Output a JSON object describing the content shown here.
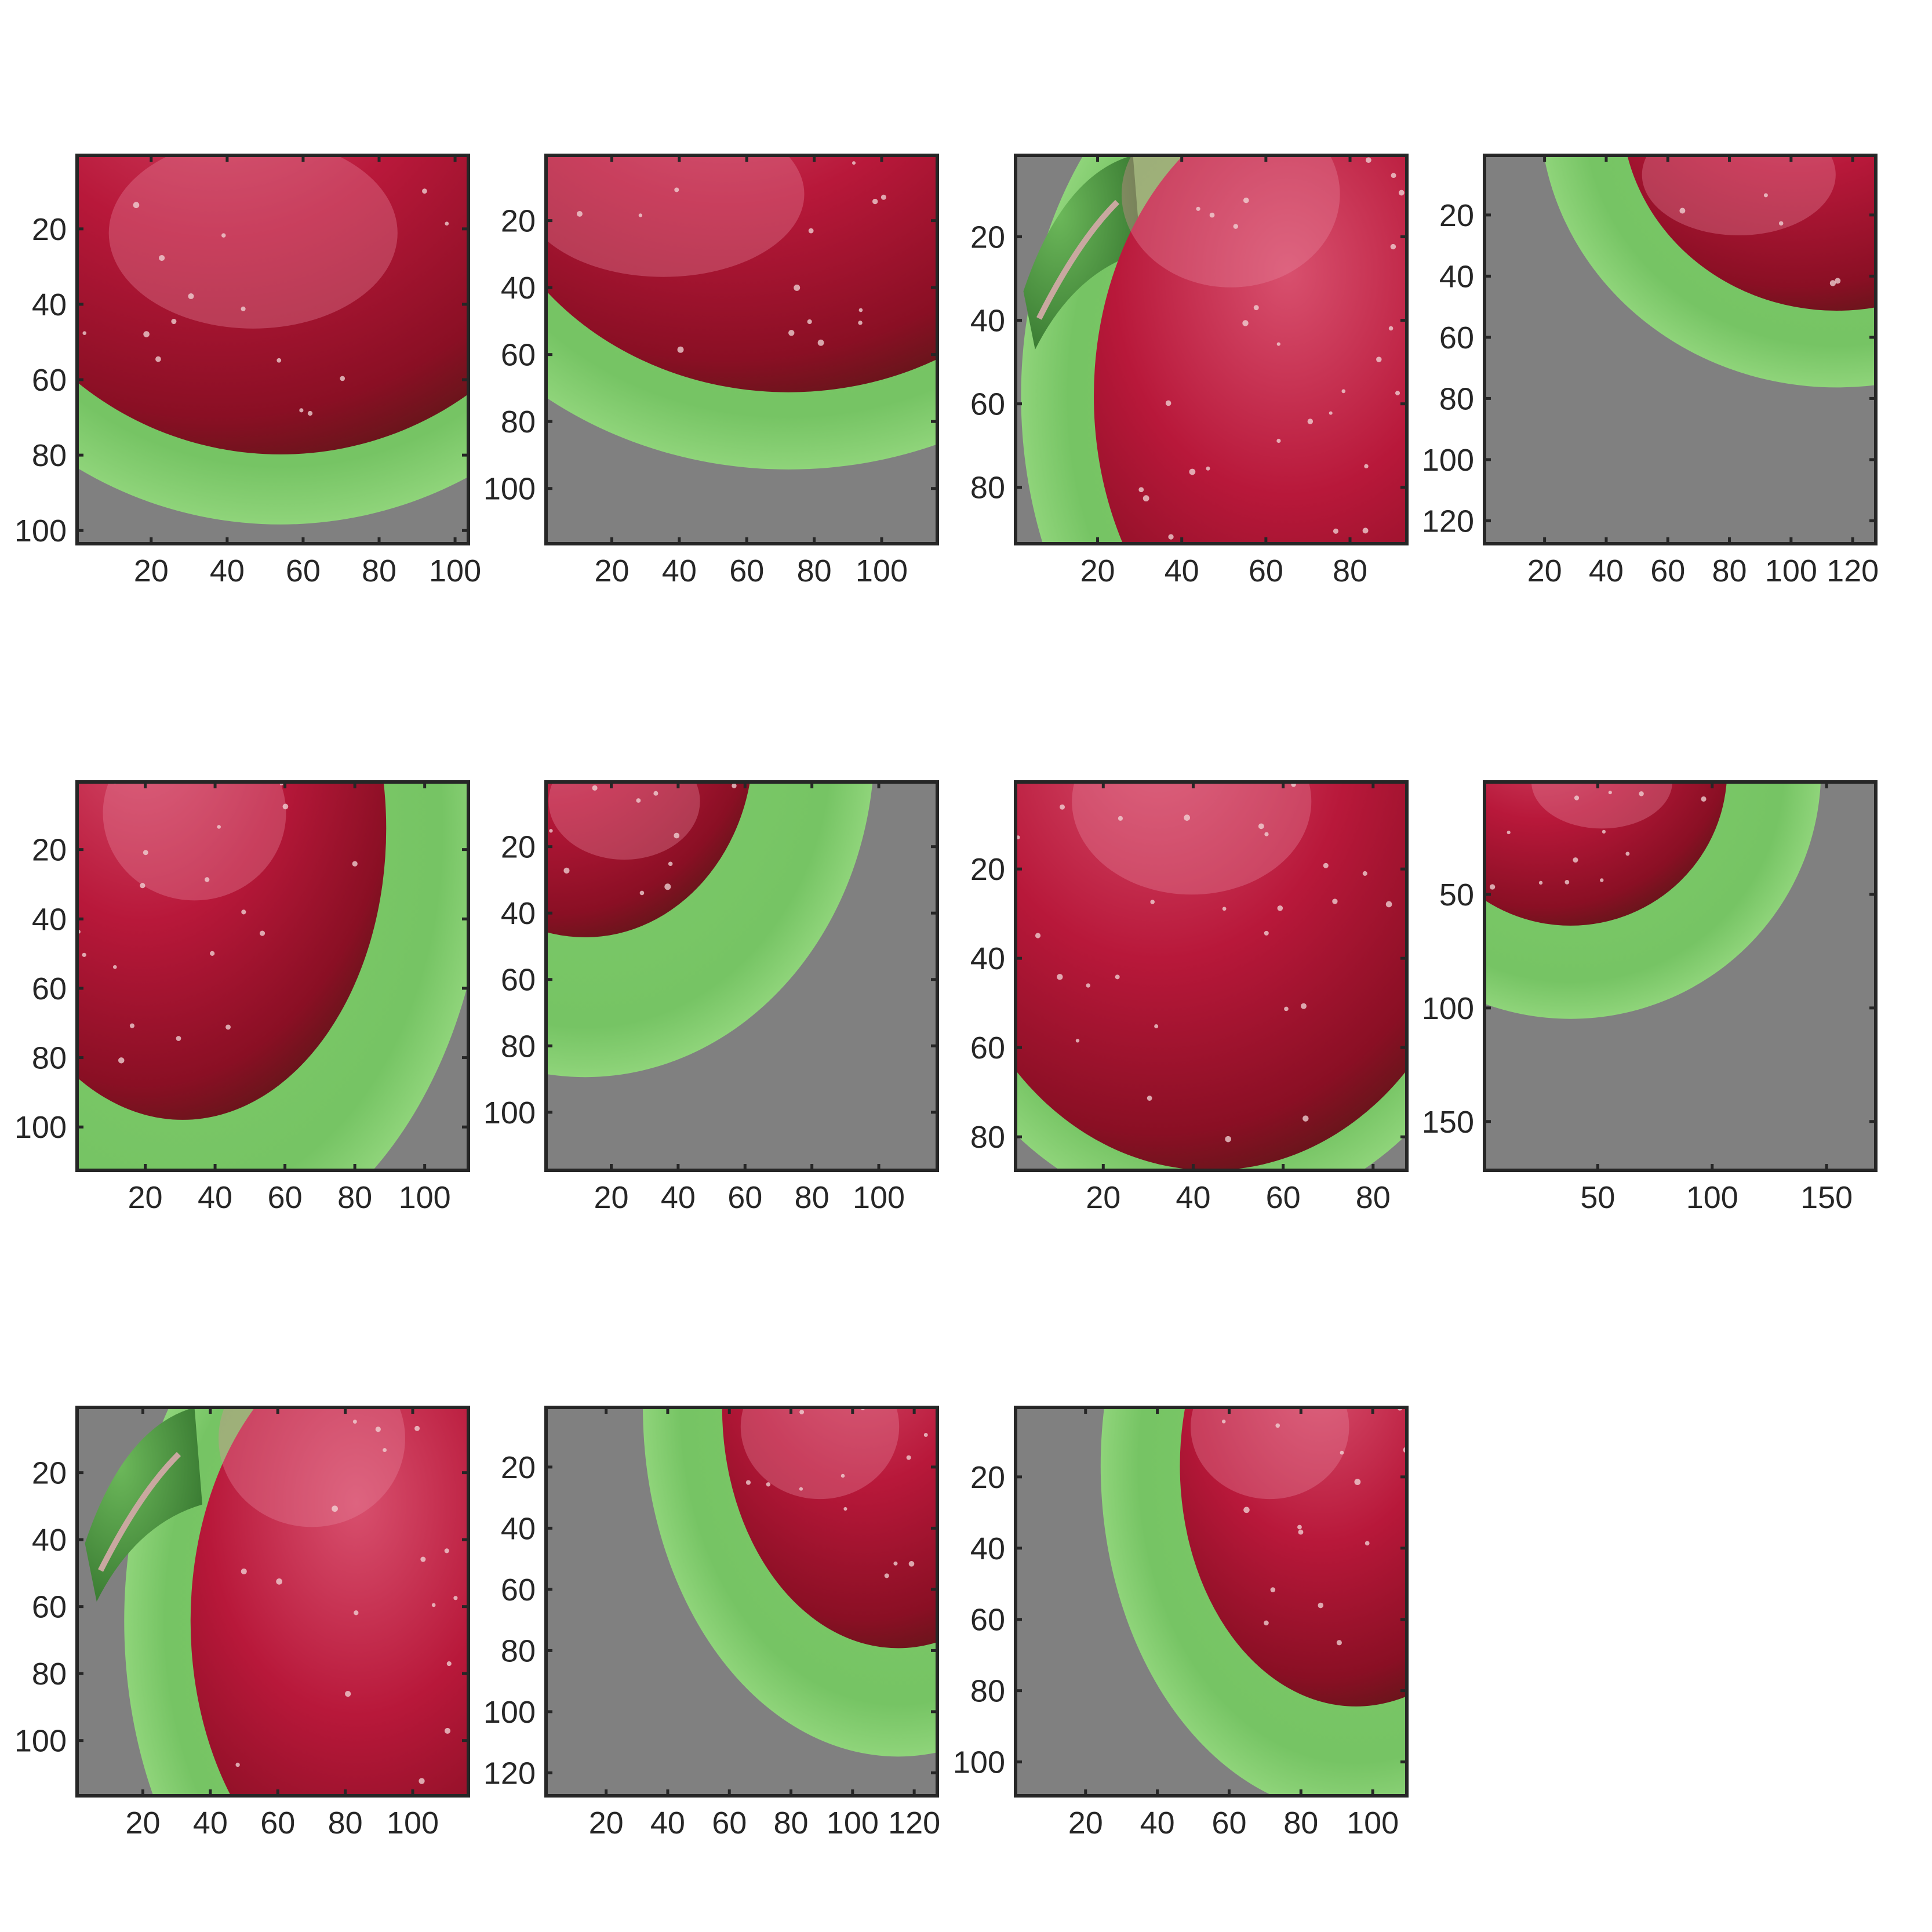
{
  "figure": {
    "panels": [
      {
        "id": "p1",
        "width": 103,
        "height": 103,
        "xticks": [
          20,
          40,
          60,
          80,
          100
        ],
        "yticks": [
          20,
          40,
          60,
          80,
          100
        ],
        "apple": {
          "cx": 0.52,
          "cy": -0.05,
          "rx": 0.82,
          "ry": 0.82,
          "ring": 1.22,
          "highlight": [
            0.45,
            0.2
          ]
        }
      },
      {
        "id": "p2",
        "width": 116,
        "height": 116,
        "xticks": [
          20,
          40,
          60,
          80,
          100
        ],
        "yticks": [
          20,
          40,
          60,
          80,
          100
        ],
        "apple": {
          "cx": 0.62,
          "cy": -0.1,
          "rx": 0.8,
          "ry": 0.71,
          "ring": 1.28,
          "highlight": [
            0.3,
            0.1
          ]
        }
      },
      {
        "id": "p3",
        "width": 93,
        "height": 93,
        "xticks": [
          20,
          40,
          60,
          80
        ],
        "yticks": [
          20,
          40,
          60,
          80
        ],
        "apple": {
          "cx": 0.82,
          "cy": 0.62,
          "rx": 0.62,
          "ry": 0.8,
          "ring": 1.3,
          "highlight": [
            0.55,
            0.1
          ],
          "leftLeaf": true
        }
      },
      {
        "id": "p4",
        "width": 127,
        "height": 127,
        "xticks": [
          20,
          40,
          60,
          80,
          100,
          120
        ],
        "yticks": [
          20,
          40,
          60,
          80,
          100,
          120
        ],
        "apple": {
          "cx": 0.9,
          "cy": -0.12,
          "rx": 0.55,
          "ry": 0.52,
          "ring": 1.38,
          "highlight": [
            0.65,
            0.05
          ]
        }
      },
      {
        "id": "p5",
        "width": 112,
        "height": 112,
        "xticks": [
          20,
          40,
          60,
          80,
          100
        ],
        "yticks": [
          20,
          40,
          60,
          80,
          100
        ],
        "apple": {
          "cx": 0.27,
          "cy": 0.12,
          "rx": 0.52,
          "ry": 0.75,
          "ring": 1.5,
          "highlight": [
            0.3,
            0.08
          ]
        }
      },
      {
        "id": "p6",
        "width": 117,
        "height": 117,
        "xticks": [
          20,
          40,
          60,
          80,
          100
        ],
        "yticks": [
          20,
          40,
          60,
          80,
          100
        ],
        "apple": {
          "cx": 0.1,
          "cy": -0.1,
          "rx": 0.43,
          "ry": 0.5,
          "ring": 1.72,
          "highlight": [
            0.2,
            0.05
          ]
        }
      },
      {
        "id": "p7",
        "width": 87,
        "height": 87,
        "xticks": [
          20,
          40,
          60,
          80
        ],
        "yticks": [
          20,
          40,
          60,
          80
        ],
        "apple": {
          "cx": 0.5,
          "cy": 0.2,
          "rx": 0.68,
          "ry": 0.8,
          "ring": 1.15,
          "highlight": [
            0.45,
            0.05
          ]
        }
      },
      {
        "id": "p8",
        "width": 171,
        "height": 171,
        "xticks": [
          50,
          100,
          150
        ],
        "yticks": [
          50,
          100,
          150
        ],
        "apple": {
          "cx": 0.22,
          "cy": -0.03,
          "rx": 0.4,
          "ry": 0.4,
          "ring": 1.6,
          "highlight": [
            0.3,
            0.0
          ]
        }
      },
      {
        "id": "p9",
        "width": 116,
        "height": 116,
        "xticks": [
          20,
          40,
          60,
          80,
          100
        ],
        "yticks": [
          20,
          40,
          60,
          80,
          100
        ],
        "apple": {
          "cx": 0.82,
          "cy": 0.55,
          "rx": 0.53,
          "ry": 0.76,
          "ring": 1.32,
          "highlight": [
            0.6,
            0.08
          ],
          "leftLeaf": true
        }
      },
      {
        "id": "p10",
        "width": 127,
        "height": 127,
        "xticks": [
          20,
          40,
          60,
          80,
          100,
          120
        ],
        "yticks": [
          20,
          40,
          60,
          80,
          100,
          120
        ],
        "apple": {
          "cx": 0.9,
          "cy": 0.0,
          "rx": 0.45,
          "ry": 0.62,
          "ring": 1.45,
          "highlight": [
            0.7,
            0.05
          ]
        }
      },
      {
        "id": "p11",
        "width": 109,
        "height": 109,
        "xticks": [
          20,
          40,
          60,
          80,
          100
        ],
        "yticks": [
          20,
          40,
          60,
          80,
          100
        ],
        "apple": {
          "cx": 0.87,
          "cy": 0.15,
          "rx": 0.45,
          "ry": 0.62,
          "ring": 1.45,
          "highlight": [
            0.65,
            0.05
          ]
        }
      }
    ]
  }
}
